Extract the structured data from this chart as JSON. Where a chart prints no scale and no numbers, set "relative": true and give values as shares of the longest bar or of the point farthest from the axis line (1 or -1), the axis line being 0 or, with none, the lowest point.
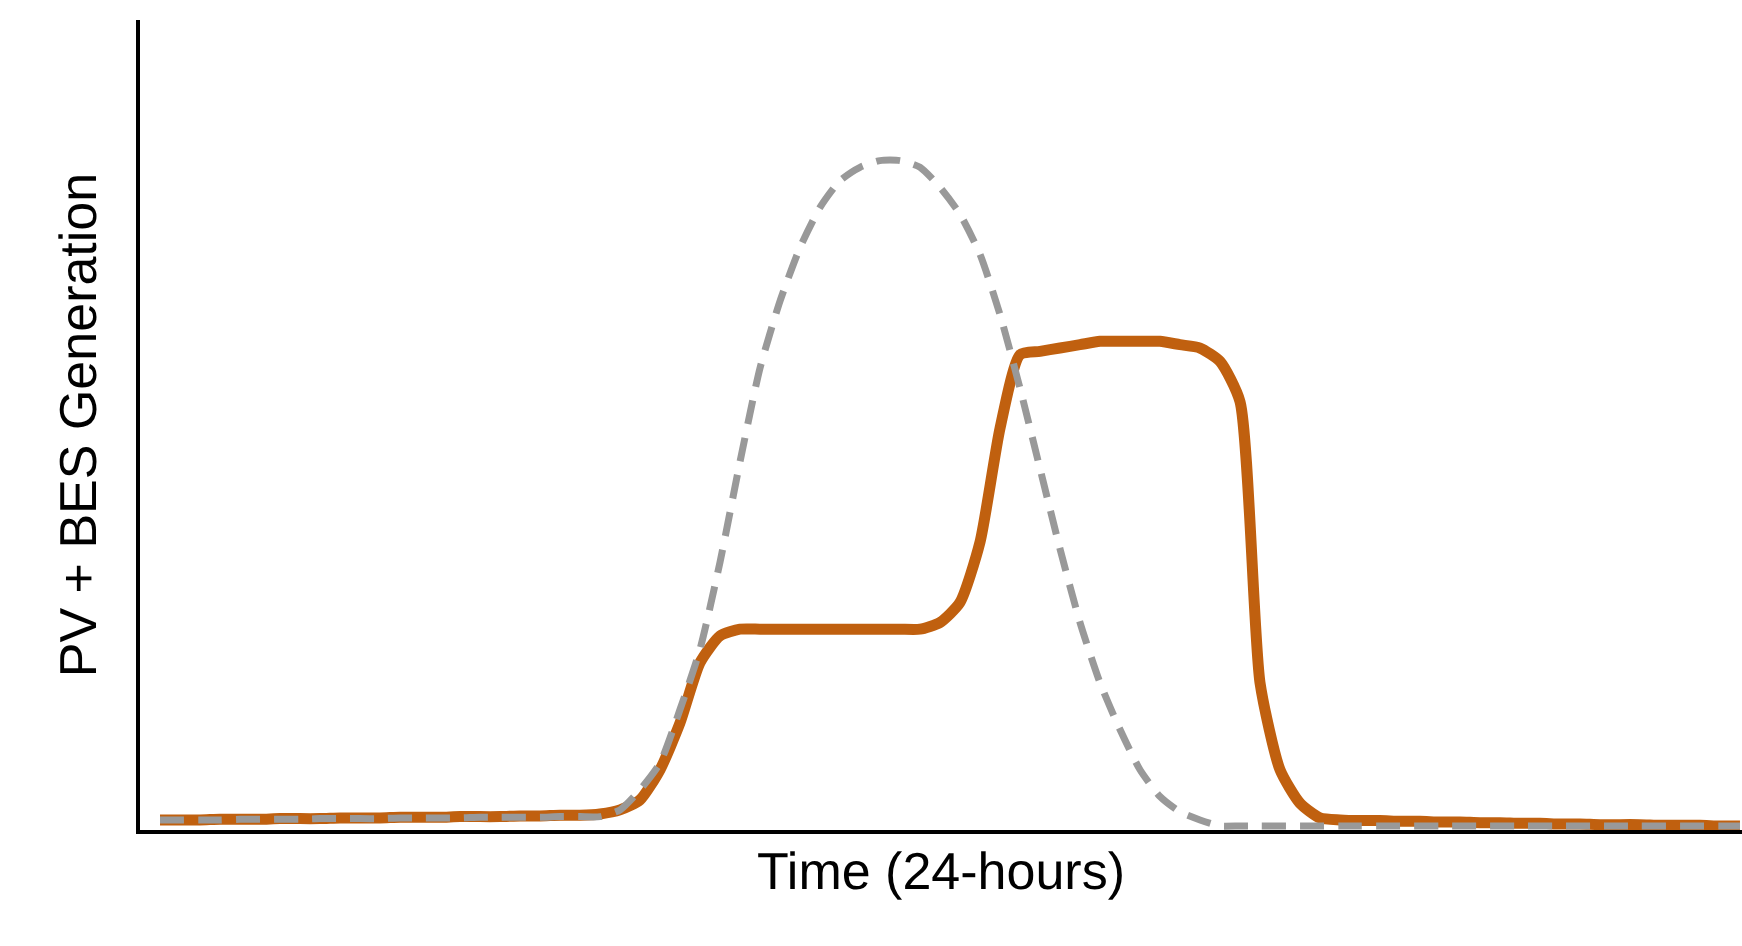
{
  "chart_data": {
    "type": "line",
    "relative": true,
    "xlabel": "Time (24-hours)",
    "ylabel": "PV + BES Generation",
    "marker": "none",
    "categories": [
      null,
      null,
      null,
      null,
      null,
      null,
      null,
      null,
      null,
      null,
      null,
      null,
      null,
      null,
      null,
      null,
      null,
      null,
      null,
      null,
      null,
      null,
      null,
      null,
      null,
      null,
      null,
      null,
      null,
      null,
      null,
      null,
      null,
      null,
      null,
      null,
      null,
      null,
      null,
      null,
      null,
      null,
      null,
      null,
      null,
      null,
      null,
      null,
      null,
      null,
      null,
      null,
      null,
      null,
      null,
      null,
      null,
      null,
      null,
      null,
      null,
      null,
      null,
      null,
      null,
      null,
      null,
      null,
      null,
      null,
      null,
      null,
      null,
      null,
      null,
      null,
      null,
      null,
      null,
      null
    ],
    "series": [
      {
        "color": "#999999",
        "line_style": "dashed",
        "values": [
          0.015,
          0.015,
          0.015,
          0.015,
          0.016,
          0.016,
          0.016,
          0.016,
          0.017,
          0.017,
          0.017,
          0.017,
          0.018,
          0.018,
          0.018,
          0.018,
          0.019,
          0.019,
          0.019,
          0.019,
          0.02,
          0.02,
          0.02,
          0.03,
          0.06,
          0.1,
          0.18,
          0.27,
          0.4,
          0.55,
          0.69,
          0.79,
          0.87,
          0.93,
          0.97,
          0.99,
          1,
          1,
          0.99,
          0.96,
          0.92,
          0.86,
          0.77,
          0.66,
          0.54,
          0.42,
          0.31,
          0.22,
          0.15,
          0.09,
          0.05,
          0.027,
          0.015,
          0.006,
          0.006,
          0.006,
          0.006,
          0.006,
          0.006,
          0.006,
          0.006,
          0.006,
          0.006,
          0.006,
          0.006,
          0.006,
          0.006,
          0.006,
          0.006,
          0.006,
          0.006,
          0.006,
          0.006,
          0.006,
          0.006,
          0.006,
          0.006,
          0.006,
          0.006,
          0.006
        ]
      },
      {
        "color": "#c0600f",
        "line_style": "solid",
        "values": [
          0.015,
          0.015,
          0.015,
          0.016,
          0.016,
          0.016,
          0.017,
          0.017,
          0.017,
          0.018,
          0.018,
          0.018,
          0.019,
          0.019,
          0.019,
          0.02,
          0.02,
          0.02,
          0.021,
          0.021,
          0.022,
          0.022,
          0.024,
          0.03,
          0.045,
          0.09,
          0.16,
          0.25,
          0.29,
          0.3,
          0.3,
          0.3,
          0.3,
          0.3,
          0.3,
          0.3,
          0.3,
          0.3,
          0.3,
          0.31,
          0.34,
          0.43,
          0.6,
          0.71,
          0.715,
          0.72,
          0.725,
          0.73,
          0.73,
          0.73,
          0.73,
          0.725,
          0.72,
          0.7,
          0.64,
          0.22,
          0.09,
          0.04,
          0.018,
          0.015,
          0.014,
          0.014,
          0.013,
          0.013,
          0.012,
          0.012,
          0.011,
          0.011,
          0.01,
          0.01,
          0.009,
          0.009,
          0.008,
          0.008,
          0.008,
          0.007,
          0.007,
          0.007,
          0.006,
          0.006
        ]
      }
    ]
  }
}
